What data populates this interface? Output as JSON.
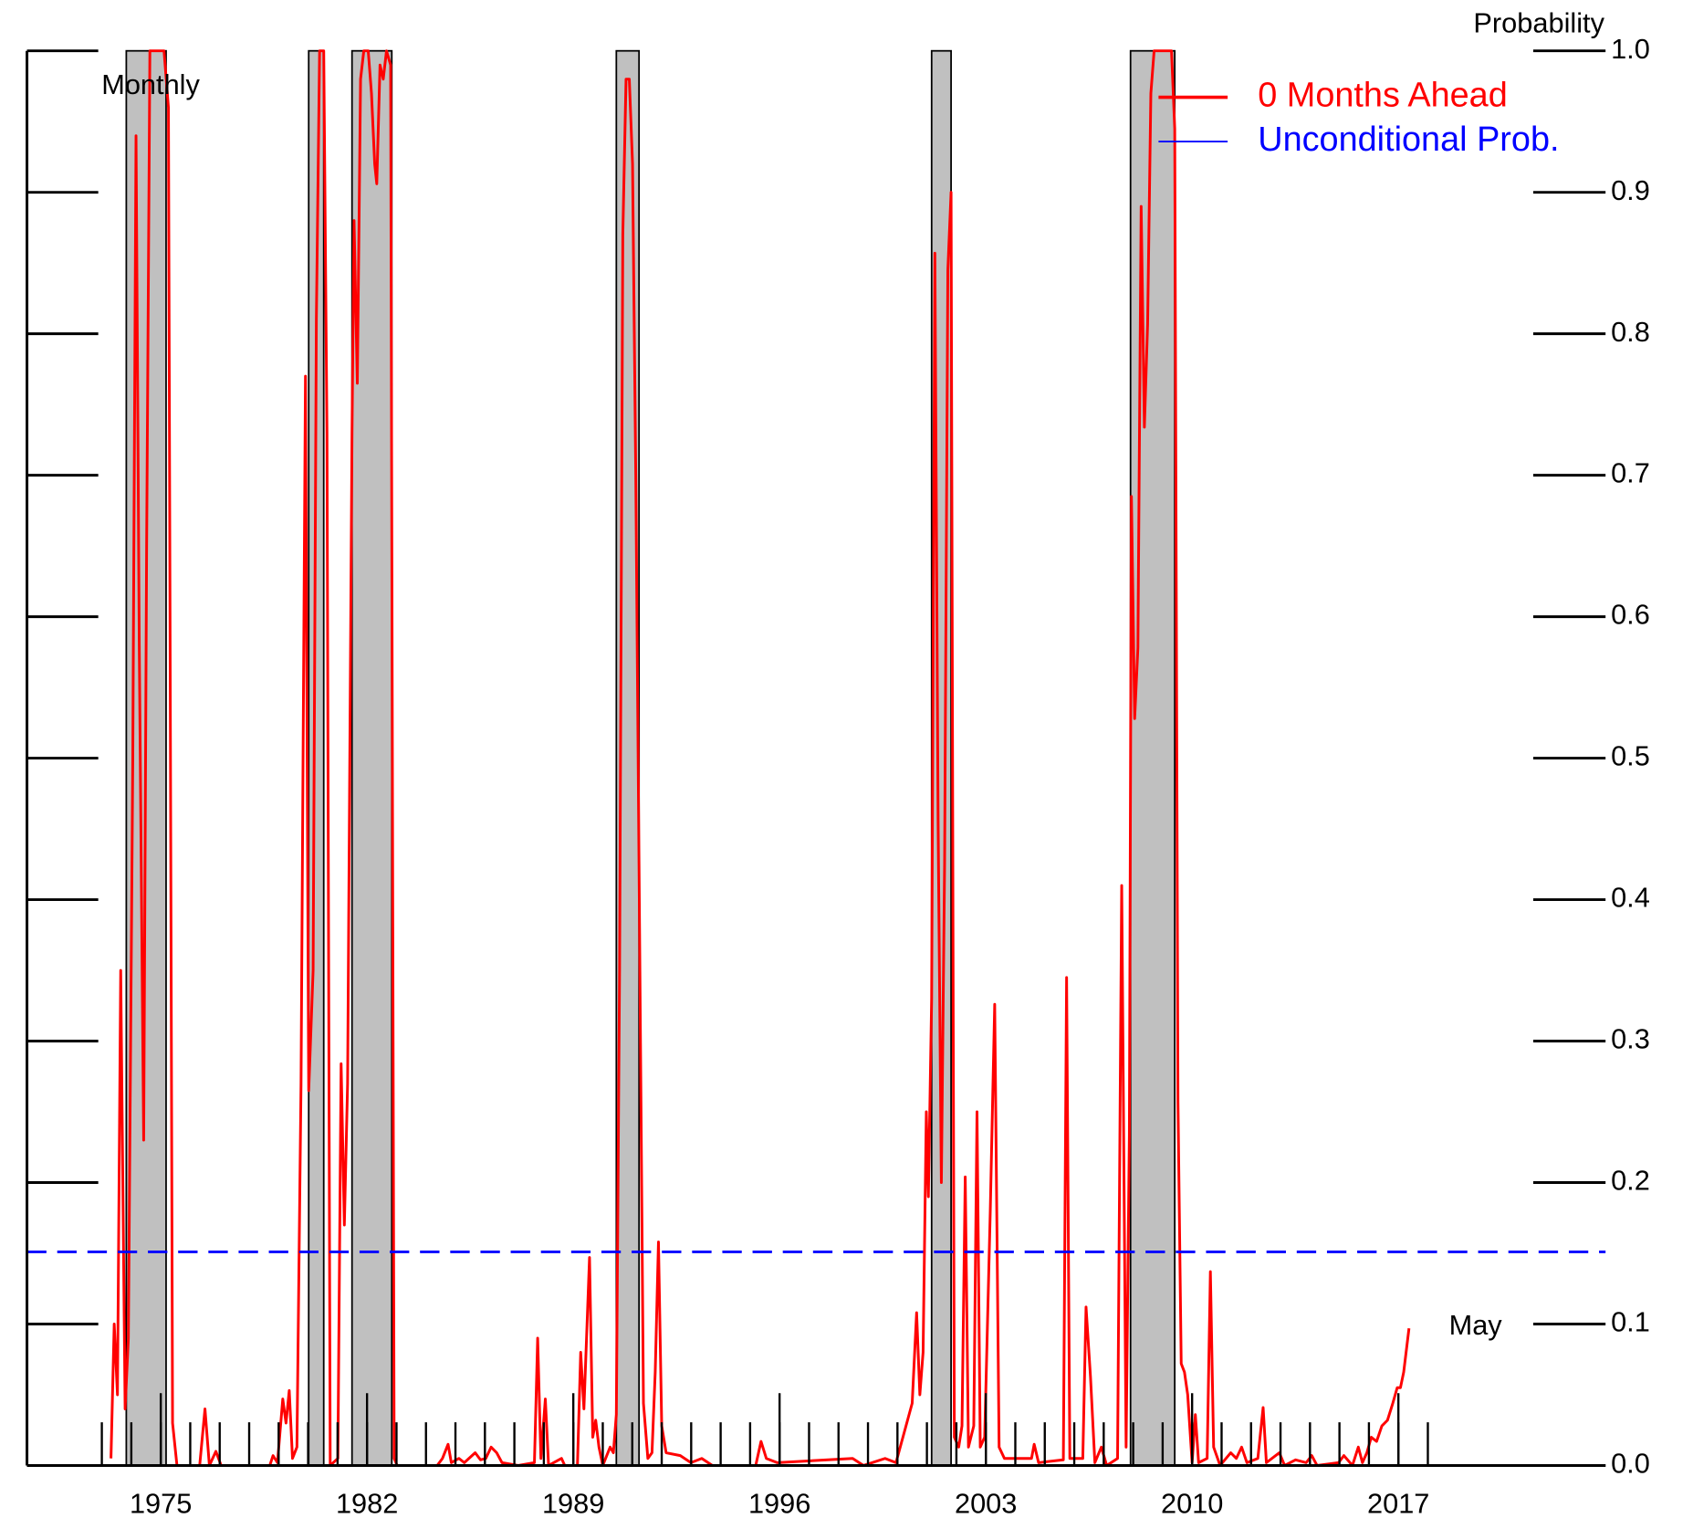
{
  "chart_data": {
    "type": "line",
    "y_label": "Probability",
    "annotations": [
      "Monthly",
      "May"
    ],
    "legend": "upper right",
    "xlim": [
      1970.46,
      2024.03
    ],
    "ylim": [
      0,
      1
    ],
    "xticks": [
      1975,
      1982,
      1989,
      1996,
      2003,
      2010,
      2017
    ],
    "xticks_minor": [
      1973,
      1974,
      1975,
      1976,
      1977,
      1978,
      1979,
      1980,
      1981,
      1982,
      1983,
      1984,
      1985,
      1986,
      1987,
      1988,
      1989,
      1990,
      1991,
      1992,
      1993,
      1994,
      1995,
      1996,
      1997,
      1998,
      1999,
      2000,
      2001,
      2002,
      2003,
      2004,
      2005,
      2006,
      2007,
      2008,
      2009,
      2010,
      2011,
      2012,
      2013,
      2014,
      2015,
      2016,
      2017,
      2018
    ],
    "yticks": [
      {
        "value": 0,
        "label": "0.0"
      },
      0.1,
      0.2,
      0.3,
      0.4,
      0.5,
      0.6,
      0.7,
      0.8,
      0.9,
      {
        "value": 1,
        "label": "1.0"
      }
    ],
    "recessions": [
      [
        1973.83,
        1975.18
      ],
      [
        1980.02,
        1980.53
      ],
      [
        1981.49,
        1982.84
      ],
      [
        1990.46,
        1991.23
      ],
      [
        2001.16,
        2001.82
      ],
      [
        2007.91,
        2009.41
      ]
    ],
    "recession_color": "#c0c0c0",
    "series": [
      {
        "name": "0 Months Ahead",
        "color": "#ff0000",
        "x": [
          1973.31,
          1973.42,
          1973.53,
          1973.64,
          1973.79,
          1973.9,
          1974.05,
          1974.16,
          1974.27,
          1974.42,
          1974.52,
          1974.63,
          1975.11,
          1975.26,
          1975.4,
          1975.55,
          1976.32,
          1976.5,
          1976.65,
          1976.87,
          1977.05,
          1978.7,
          1978.81,
          1978.96,
          1979.14,
          1979.25,
          1979.36,
          1979.47,
          1979.62,
          1979.76,
          1979.91,
          1980.02,
          1980.17,
          1980.28,
          1980.39,
          1980.53,
          1980.64,
          1980.75,
          1981.01,
          1981.12,
          1981.23,
          1981.34,
          1981.49,
          1981.56,
          1981.67,
          1981.78,
          1981.89,
          1982.04,
          1982.15,
          1982.26,
          1982.33,
          1982.44,
          1982.55,
          1982.66,
          1982.8,
          1982.92,
          1983.02,
          1984.38,
          1984.56,
          1984.75,
          1984.86,
          1985.12,
          1985.3,
          1985.67,
          1985.85,
          1986.03,
          1986.21,
          1986.4,
          1986.58,
          1987.13,
          1987.68,
          1987.79,
          1987.9,
          1988.05,
          1988.16,
          1988.6,
          1988.71,
          1989.14,
          1989.25,
          1989.36,
          1989.55,
          1989.66,
          1989.76,
          1989.87,
          1990,
          1990.25,
          1990.36,
          1990.46,
          1990.57,
          1990.68,
          1990.79,
          1990.9,
          1991.01,
          1991.12,
          1991.23,
          1991.38,
          1991.53,
          1991.67,
          1991.78,
          1991.89,
          1992,
          1992.15,
          1992.63,
          1992.99,
          1993.36,
          1993.72,
          1995.19,
          1995.37,
          1995.55,
          1995.92,
          1998.48,
          1998.85,
          1999.58,
          1999.95,
          2000.5,
          2000.65,
          2000.76,
          2000.87,
          2000.98,
          2001.05,
          2001.16,
          2001.27,
          2001.38,
          2001.49,
          2001.6,
          2001.71,
          2001.82,
          2001.93,
          2002.08,
          2002.19,
          2002.3,
          2002.41,
          2002.59,
          2002.7,
          2002.81,
          2002.96,
          2003.15,
          2003.3,
          2003.45,
          2003.63,
          2004.55,
          2004.64,
          2004.79,
          2005.63,
          2005.74,
          2005.85,
          2006.29,
          2006.4,
          2006.55,
          2006.7,
          2006.92,
          2007.1,
          2007.47,
          2007.61,
          2007.76,
          2007.87,
          2007.94,
          2008.05,
          2008.16,
          2008.27,
          2008.38,
          2008.49,
          2008.6,
          2008.71,
          2009.3,
          2009.41,
          2009.52,
          2009.63,
          2009.74,
          2009.85,
          2010,
          2010.11,
          2010.22,
          2010.51,
          2010.62,
          2010.73,
          2010.95,
          2011.31,
          2011.5,
          2011.68,
          2011.86,
          2012.23,
          2012.41,
          2012.52,
          2012.96,
          2013.14,
          2013.51,
          2013.87,
          2014.06,
          2014.24,
          2014.97,
          2015.15,
          2015.44,
          2015.64,
          2015.78,
          2015.93,
          2016.08,
          2016.26,
          2016.44,
          2016.63,
          2016.81,
          2016.96,
          2017.07,
          2017.18,
          2017.36
        ],
        "values": [
          0.005,
          0.1,
          0.05,
          0.35,
          0.04,
          0.09,
          0.5,
          0.94,
          0.58,
          0.23,
          0.65,
          1,
          1,
          0.96,
          0.03,
          0,
          0,
          0.04,
          0,
          0.01,
          0,
          0,
          0.007,
          0.002,
          0.047,
          0.03,
          0.053,
          0.005,
          0.013,
          0.27,
          0.77,
          0.265,
          0.35,
          0.81,
          1,
          1,
          0.73,
          0,
          0.005,
          0.284,
          0.17,
          0.27,
          0.73,
          0.88,
          0.765,
          0.98,
          1,
          1,
          0.97,
          0.92,
          0.906,
          0.99,
          0.98,
          1,
          0.99,
          0.005,
          0,
          0,
          0.005,
          0.015,
          0.002,
          0.005,
          0.002,
          0.009,
          0.004,
          0.005,
          0.013,
          0.009,
          0.002,
          0,
          0.002,
          0.09,
          0.005,
          0.047,
          0,
          0.005,
          0,
          0,
          0.08,
          0.04,
          0.147,
          0.02,
          0.032,
          0.013,
          0,
          0.013,
          0.009,
          0.036,
          0.35,
          0.87,
          0.98,
          0.98,
          0.92,
          0.7,
          0.425,
          0.044,
          0.005,
          0.009,
          0.066,
          0.158,
          0.028,
          0.009,
          0.007,
          0.002,
          0.005,
          0,
          0,
          0.017,
          0.005,
          0.002,
          0.005,
          0,
          0.005,
          0.002,
          0.044,
          0.108,
          0.05,
          0.08,
          0.25,
          0.19,
          0.33,
          0.857,
          0.455,
          0.2,
          0.425,
          0.845,
          0.9,
          0.02,
          0.013,
          0.028,
          0.204,
          0.013,
          0.028,
          0.25,
          0.013,
          0.02,
          0.18,
          0.326,
          0.013,
          0.005,
          0.005,
          0.015,
          0.002,
          0.004,
          0.345,
          0.005,
          0.005,
          0.112,
          0.063,
          0.002,
          0.013,
          0,
          0.005,
          0.41,
          0.013,
          0.234,
          0.685,
          0.528,
          0.578,
          0.89,
          0.734,
          0.807,
          0.97,
          1,
          1,
          0.945,
          0.257,
          0.072,
          0.066,
          0.05,
          0.002,
          0.036,
          0.002,
          0.005,
          0.137,
          0.013,
          0,
          0.009,
          0.005,
          0.013,
          0.002,
          0.005,
          0.041,
          0.002,
          0.009,
          0,
          0.004,
          0.002,
          0.007,
          0,
          0.002,
          0.007,
          0,
          0.013,
          0.002,
          0.009,
          0.02,
          0.017,
          0.028,
          0.032,
          0.044,
          0.055,
          0.055,
          0.066,
          0.097
        ]
      },
      {
        "name": "Unconditional Prob.",
        "color": "#0000ff",
        "value": 0.151,
        "dashed": true
      }
    ]
  }
}
